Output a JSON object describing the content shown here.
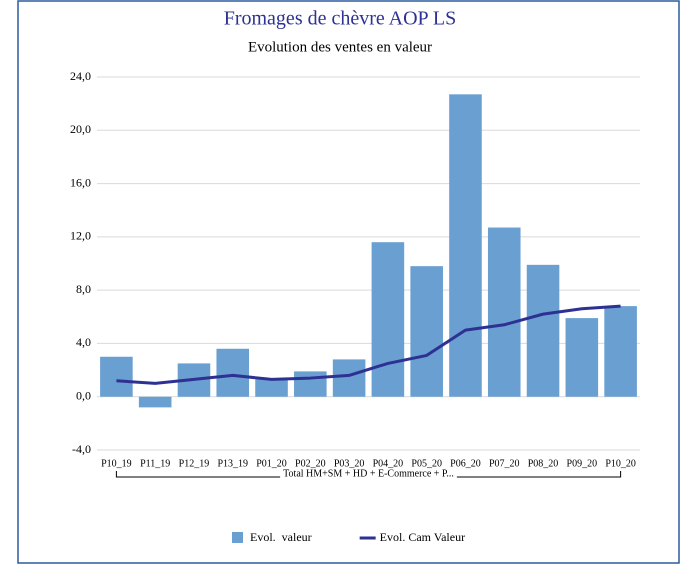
{
  "chart_data": {
    "type": "bar",
    "title": "Fromages de chèvre AOP LS",
    "subtitle": "Evolution des ventes en valeur",
    "categories": [
      "P10_19",
      "P11_19",
      "P12_19",
      "P13_19",
      "P01_20",
      "P02_20",
      "P03_20",
      "P04_20",
      "P05_20",
      "P06_20",
      "P07_20",
      "P08_20",
      "P09_20",
      "P10_20"
    ],
    "group_label": "Total HM+SM + HD + E-Commerce + P...",
    "series": [
      {
        "name": "Evol.  valeur",
        "type": "bar",
        "color": "#6a9fd2",
        "values": [
          3.0,
          -0.8,
          2.5,
          3.6,
          1.3,
          1.9,
          2.8,
          11.6,
          9.8,
          22.7,
          12.7,
          9.9,
          5.9,
          6.8
        ]
      },
      {
        "name": "Evol. Cam Valeur",
        "type": "line",
        "color": "#2e3192",
        "values": [
          1.2,
          1.0,
          1.3,
          1.6,
          1.3,
          1.4,
          1.6,
          2.5,
          3.1,
          5.0,
          5.4,
          6.2,
          6.6,
          6.8
        ]
      }
    ],
    "ylim": [
      -4,
      24
    ],
    "yticks": [
      {
        "value": -4,
        "label": "-4,0"
      },
      {
        "value": 0,
        "label": "0,0"
      },
      {
        "value": 4,
        "label": "4,0"
      },
      {
        "value": 8,
        "label": "8,0"
      },
      {
        "value": 12,
        "label": "12,0"
      },
      {
        "value": 16,
        "label": "16,0"
      },
      {
        "value": 20,
        "label": "20,0"
      },
      {
        "value": 24,
        "label": "24,0"
      }
    ],
    "grid": true,
    "legend": "bottom"
  }
}
